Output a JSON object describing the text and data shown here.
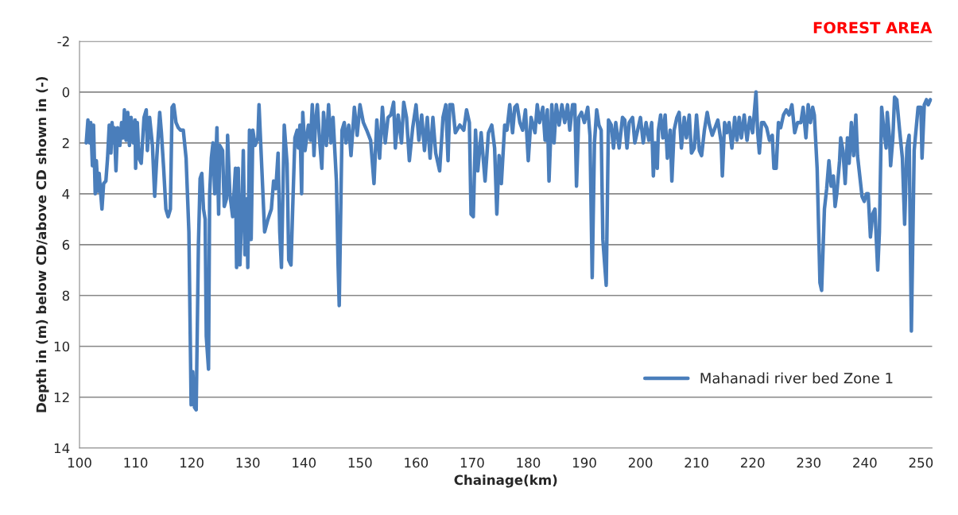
{
  "chart_data": {
    "type": "line",
    "xlabel": "Chainage(km)",
    "ylabel": "Depth in (m) below CD/above CD shown in (-)",
    "annotations": [
      "FOREST AREA"
    ],
    "xlim": [
      100,
      252
    ],
    "xticks": [
      100,
      110,
      120,
      130,
      140,
      150,
      160,
      170,
      180,
      190,
      200,
      210,
      220,
      230,
      240,
      250
    ],
    "ylim": [
      14,
      -2
    ],
    "yticks": [
      -2,
      0,
      2,
      4,
      6,
      8,
      10,
      12,
      14
    ],
    "grid": "y",
    "legend": "bottom right",
    "marker": "none",
    "line_style": "solid",
    "series": [
      {
        "name": "Mahanadi river bed Zone 1",
        "color": "#4a7ebb",
        "x": [
          101.2,
          101.5,
          101.8,
          102.0,
          102.3,
          102.5,
          102.8,
          103.0,
          103.3,
          103.5,
          104.0,
          104.3,
          104.7,
          105.0,
          105.3,
          105.6,
          105.8,
          106.0,
          106.2,
          106.5,
          106.8,
          107.2,
          107.5,
          107.8,
          108.0,
          108.3,
          108.6,
          108.9,
          109.2,
          109.6,
          109.9,
          110.0,
          110.3,
          110.6,
          111.0,
          111.5,
          111.9,
          112.1,
          112.5,
          113.0,
          113.4,
          113.8,
          114.3,
          114.6,
          115.0,
          115.4,
          115.8,
          116.2,
          116.5,
          116.8,
          117.2,
          117.6,
          118.0,
          118.5,
          119.0,
          119.5,
          119.9,
          120.2,
          120.5,
          120.8,
          121.2,
          121.5,
          121.8,
          122.1,
          122.4,
          122.6,
          123.0,
          123.2,
          123.5,
          123.8,
          124.1,
          124.5,
          124.8,
          125.0,
          125.5,
          125.8,
          126.2,
          126.4,
          126.8,
          127.3,
          127.8,
          128.0,
          128.3,
          128.6,
          129.0,
          129.2,
          129.5,
          129.8,
          130.0,
          130.3,
          130.6,
          130.9,
          131.3,
          131.8,
          132.0,
          132.5,
          133.0,
          133.6,
          134.2,
          134.6,
          135.0,
          135.4,
          135.7,
          136.0,
          136.5,
          137.0,
          137.3,
          137.7,
          138.0,
          138.4,
          138.8,
          139.0,
          139.3,
          139.6,
          139.8,
          140.2,
          140.8,
          141.2,
          141.5,
          141.8,
          142.1,
          142.4,
          142.8,
          143.2,
          143.5,
          144.0,
          144.4,
          144.8,
          145.2,
          145.8,
          146.1,
          146.3,
          146.8,
          147.2,
          147.5,
          148.0,
          148.4,
          149.0,
          149.5,
          150.0,
          150.6,
          151.2,
          151.9,
          152.5,
          153.0,
          153.5,
          154.0,
          154.5,
          155.0,
          155.5,
          156.0,
          156.3,
          156.8,
          157.4,
          157.8,
          158.3,
          158.8,
          159.4,
          160.0,
          160.5,
          161.0,
          161.5,
          162.0,
          162.5,
          163.0,
          163.5,
          164.2,
          164.8,
          165.3,
          165.7,
          166.0,
          166.5,
          167.0,
          167.8,
          168.5,
          169.0,
          169.5,
          169.8,
          170.2,
          170.6,
          171.0,
          171.6,
          172.3,
          172.9,
          173.5,
          174.0,
          174.4,
          174.8,
          175.2,
          175.8,
          176.2,
          176.7,
          177.2,
          177.6,
          178.0,
          178.5,
          179.0,
          179.5,
          180.0,
          180.5,
          181.2,
          181.6,
          182.0,
          182.6,
          183.0,
          183.4,
          183.7,
          184.2,
          184.6,
          185.0,
          185.5,
          186.0,
          186.5,
          187.0,
          187.4,
          187.9,
          188.3,
          188.6,
          189.0,
          189.5,
          190.0,
          190.6,
          191.0,
          191.4,
          191.8,
          192.2,
          192.6,
          193.0,
          193.3,
          193.9,
          194.3,
          194.8,
          195.2,
          195.6,
          196.2,
          196.8,
          197.2,
          197.6,
          198.0,
          198.6,
          199.0,
          200.0,
          200.5,
          201.0,
          201.5,
          202.0,
          202.3,
          202.6,
          203.0,
          203.2,
          203.6,
          204.0,
          204.4,
          204.8,
          205.3,
          205.6,
          206.0,
          206.5,
          206.9,
          207.3,
          207.8,
          208.2,
          208.7,
          209.1,
          209.6,
          210.0,
          210.5,
          210.9,
          211.4,
          211.9,
          212.3,
          212.8,
          213.3,
          213.8,
          214.4,
          214.6,
          215.0,
          215.4,
          215.8,
          216.3,
          216.8,
          217.2,
          217.6,
          218.0,
          218.5,
          219.0,
          219.5,
          220.0,
          220.6,
          220.9,
          221.2,
          221.6,
          222.0,
          222.5,
          223.0,
          223.5,
          223.8,
          224.2,
          224.6,
          225.0,
          225.5,
          226.0,
          226.5,
          227.0,
          227.5,
          228.0,
          228.6,
          229.0,
          229.5,
          229.9,
          230.3,
          230.7,
          231.0,
          231.5,
          232.0,
          232.3,
          232.8,
          233.2,
          233.6,
          234.0,
          234.4,
          234.7,
          235.0,
          235.5,
          235.7,
          236.1,
          236.5,
          236.9,
          237.2,
          237.6,
          238.0,
          238.4,
          238.7,
          239.0,
          239.5,
          239.9,
          240.3,
          240.6,
          241.0,
          241.4,
          241.8,
          242.3,
          242.6,
          243.0,
          243.4,
          243.8,
          244.0,
          244.4,
          244.6,
          245.0,
          245.3,
          245.7,
          246.2,
          246.7,
          247.1,
          247.5,
          247.9,
          248.3,
          248.8,
          249.0,
          249.5,
          250.0,
          250.2,
          250.6,
          251.0,
          251.3,
          251.7
        ],
        "values": [
          2.0,
          1.1,
          2.0,
          1.2,
          2.9,
          1.3,
          4.0,
          2.7,
          3.9,
          3.2,
          4.6,
          3.6,
          3.5,
          2.6,
          1.3,
          2.4,
          1.2,
          2.0,
          1.4,
          3.1,
          1.4,
          2.1,
          1.2,
          1.8,
          0.7,
          1.9,
          0.8,
          2.1,
          1.0,
          2.0,
          1.1,
          3.0,
          1.2,
          2.6,
          2.8,
          1.0,
          0.7,
          2.3,
          1.0,
          2.1,
          4.1,
          2.5,
          0.8,
          1.6,
          3.0,
          4.6,
          4.9,
          4.6,
          0.6,
          0.5,
          1.2,
          1.4,
          1.5,
          1.5,
          2.6,
          5.5,
          12.3,
          11.0,
          12.4,
          12.5,
          6.0,
          3.4,
          3.2,
          4.6,
          5.0,
          9.6,
          10.9,
          4.0,
          2.6,
          2.0,
          4.0,
          1.4,
          4.8,
          2.1,
          2.3,
          4.5,
          4.2,
          1.7,
          4.0,
          4.9,
          3.0,
          6.9,
          3.0,
          6.8,
          4.2,
          2.3,
          6.4,
          4.2,
          6.9,
          1.5,
          5.8,
          1.5,
          2.1,
          1.8,
          0.5,
          3.0,
          5.5,
          5.0,
          4.6,
          3.5,
          3.8,
          2.4,
          5.5,
          6.9,
          1.3,
          2.8,
          6.6,
          6.8,
          4.6,
          1.8,
          1.5,
          2.2,
          1.3,
          4.0,
          0.8,
          2.3,
          1.3,
          1.9,
          0.5,
          2.5,
          1.1,
          0.5,
          1.9,
          3.0,
          0.8,
          2.1,
          0.5,
          2.0,
          1.0,
          3.5,
          6.8,
          8.4,
          1.5,
          1.2,
          2.0,
          1.3,
          2.5,
          0.6,
          1.7,
          0.5,
          1.2,
          1.5,
          1.9,
          3.6,
          1.1,
          2.6,
          0.6,
          2.0,
          1.0,
          0.9,
          0.4,
          2.2,
          0.9,
          2.0,
          0.4,
          1.0,
          2.7,
          1.4,
          0.5,
          1.9,
          0.9,
          2.3,
          1.0,
          2.6,
          1.0,
          2.4,
          3.1,
          1.0,
          0.5,
          2.7,
          0.5,
          0.5,
          1.6,
          1.3,
          1.5,
          0.7,
          1.2,
          4.8,
          4.9,
          1.5,
          3.1,
          1.6,
          3.5,
          1.6,
          1.3,
          2.2,
          4.8,
          2.5,
          3.6,
          1.3,
          1.5,
          0.5,
          1.6,
          0.6,
          0.5,
          1.2,
          1.5,
          0.7,
          2.7,
          1.0,
          1.6,
          0.5,
          1.2,
          0.6,
          1.9,
          0.7,
          3.5,
          0.5,
          2.0,
          0.5,
          1.3,
          0.5,
          1.2,
          0.5,
          1.5,
          0.5,
          0.5,
          3.7,
          1.0,
          0.8,
          1.2,
          0.6,
          1.7,
          7.3,
          2.0,
          0.7,
          1.3,
          1.5,
          5.8,
          7.6,
          1.1,
          1.3,
          2.2,
          1.2,
          2.2,
          1.0,
          1.1,
          2.2,
          1.2,
          1.0,
          2.0,
          1.0,
          2.0,
          1.2,
          1.9,
          1.2,
          3.3,
          2.0,
          3.0,
          1.5,
          0.9,
          1.8,
          0.9,
          2.6,
          1.5,
          3.5,
          1.5,
          1.0,
          0.8,
          2.2,
          1.0,
          1.8,
          0.9,
          2.4,
          2.2,
          0.9,
          2.3,
          2.5,
          1.5,
          0.8,
          1.3,
          1.7,
          1.4,
          1.1,
          2.0,
          3.3,
          1.2,
          1.6,
          1.2,
          2.2,
          1.0,
          1.9,
          1.0,
          1.8,
          0.9,
          1.9,
          1.0,
          1.6,
          0.0,
          1.6,
          2.4,
          1.2,
          1.2,
          1.4,
          1.9,
          1.7,
          3.0,
          3.0,
          1.2,
          1.4,
          0.9,
          0.7,
          0.9,
          0.5,
          1.6,
          1.2,
          1.2,
          0.6,
          1.8,
          0.5,
          1.2,
          0.6,
          0.9,
          3.0,
          7.5,
          7.8,
          4.6,
          3.8,
          2.7,
          3.7,
          3.3,
          4.5,
          4.0,
          2.7,
          1.8,
          2.3,
          3.6,
          1.8,
          2.8,
          1.2,
          2.5,
          0.9,
          2.5,
          3.1,
          4.1,
          4.3,
          4.0,
          4.0,
          5.7,
          4.8,
          4.6,
          7.0,
          5.5,
          0.6,
          1.5,
          2.2,
          0.8,
          1.8,
          2.9,
          1.8,
          0.2,
          0.3,
          1.5,
          2.6,
          5.2,
          2.2,
          1.7,
          9.4,
          2.3,
          1.8,
          0.6,
          0.6,
          2.6,
          0.5,
          0.3,
          0.5,
          0.3
        ]
      }
    ]
  }
}
